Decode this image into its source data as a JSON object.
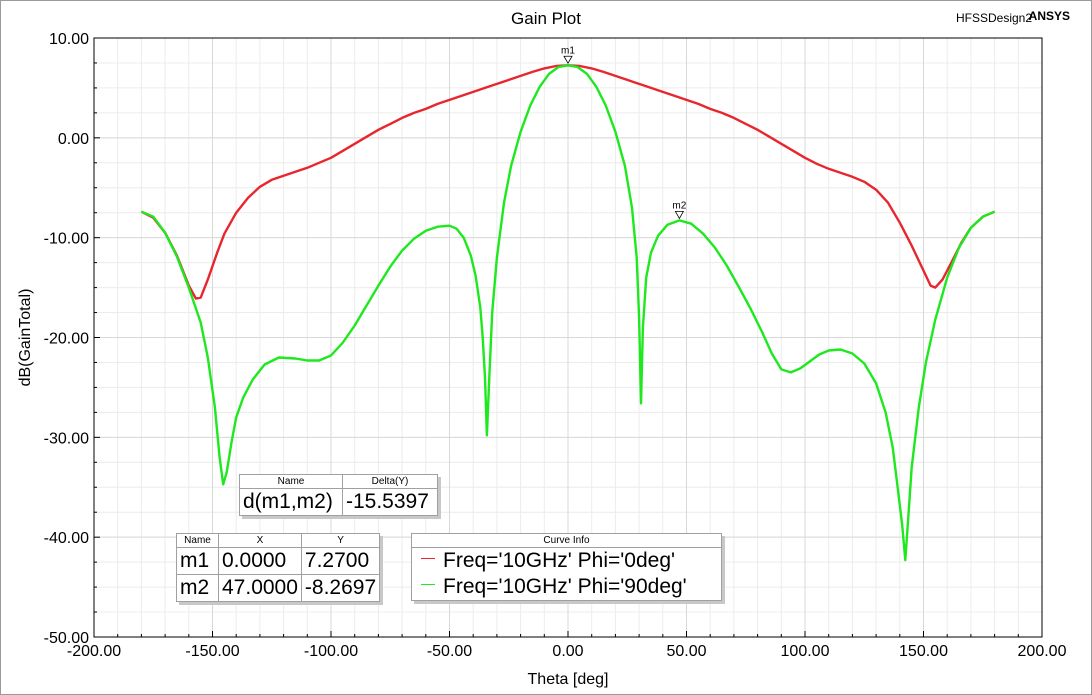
{
  "header": {
    "title": "Gain Plot",
    "design": "HFSSDesign2",
    "brand": "ANSYS"
  },
  "colors": {
    "series_red": "#e8262d",
    "series_green": "#1ee81e",
    "grid": "#d8d8d8",
    "axis": "#000000"
  },
  "chart_data": {
    "type": "line",
    "title": "Gain Plot",
    "xlabel": "Theta [deg]",
    "ylabel": "dB(GainTotal)",
    "xlim": [
      -200,
      200
    ],
    "ylim": [
      -50,
      10
    ],
    "x_ticks": [
      "-200.00",
      "-150.00",
      "-100.00",
      "-50.00",
      "0.00",
      "50.00",
      "100.00",
      "150.00",
      "200.00"
    ],
    "y_ticks": [
      "10.00",
      "0.00",
      "-10.00",
      "-20.00",
      "-30.00",
      "-40.00",
      "-50.00"
    ],
    "grid": true,
    "series": [
      {
        "name": "Freq='10GHz' Phi='0deg'",
        "color": "#e8262d",
        "points": [
          [
            -180,
            -7.4
          ],
          [
            -175,
            -8.0
          ],
          [
            -170,
            -9.5
          ],
          [
            -165,
            -11.8
          ],
          [
            -160,
            -14.8
          ],
          [
            -157,
            -16.1
          ],
          [
            -155,
            -16.0
          ],
          [
            -152,
            -14.2
          ],
          [
            -148,
            -11.5
          ],
          [
            -145,
            -9.6
          ],
          [
            -140,
            -7.5
          ],
          [
            -135,
            -6.0
          ],
          [
            -130,
            -4.9
          ],
          [
            -125,
            -4.2
          ],
          [
            -120,
            -3.8
          ],
          [
            -115,
            -3.4
          ],
          [
            -110,
            -3.0
          ],
          [
            -105,
            -2.5
          ],
          [
            -100,
            -2.0
          ],
          [
            -95,
            -1.3
          ],
          [
            -90,
            -0.6
          ],
          [
            -85,
            0.1
          ],
          [
            -80,
            0.8
          ],
          [
            -75,
            1.4
          ],
          [
            -70,
            2.0
          ],
          [
            -65,
            2.5
          ],
          [
            -60,
            2.9
          ],
          [
            -55,
            3.4
          ],
          [
            -50,
            3.8
          ],
          [
            -45,
            4.2
          ],
          [
            -40,
            4.6
          ],
          [
            -35,
            5.0
          ],
          [
            -30,
            5.4
          ],
          [
            -25,
            5.8
          ],
          [
            -20,
            6.2
          ],
          [
            -15,
            6.6
          ],
          [
            -10,
            6.95
          ],
          [
            -5,
            7.2
          ],
          [
            0,
            7.27
          ],
          [
            5,
            7.2
          ],
          [
            10,
            6.95
          ],
          [
            15,
            6.6
          ],
          [
            20,
            6.2
          ],
          [
            25,
            5.8
          ],
          [
            30,
            5.4
          ],
          [
            35,
            5.0
          ],
          [
            40,
            4.6
          ],
          [
            45,
            4.2
          ],
          [
            50,
            3.8
          ],
          [
            55,
            3.4
          ],
          [
            60,
            2.9
          ],
          [
            65,
            2.5
          ],
          [
            70,
            2.0
          ],
          [
            75,
            1.4
          ],
          [
            80,
            0.8
          ],
          [
            85,
            0.1
          ],
          [
            90,
            -0.6
          ],
          [
            95,
            -1.3
          ],
          [
            100,
            -2.0
          ],
          [
            105,
            -2.6
          ],
          [
            110,
            -3.1
          ],
          [
            115,
            -3.5
          ],
          [
            120,
            -3.9
          ],
          [
            125,
            -4.4
          ],
          [
            130,
            -5.2
          ],
          [
            135,
            -6.5
          ],
          [
            140,
            -8.5
          ],
          [
            145,
            -10.8
          ],
          [
            150,
            -13.3
          ],
          [
            153,
            -14.8
          ],
          [
            155,
            -15.0
          ],
          [
            158,
            -14.2
          ],
          [
            162,
            -12.4
          ],
          [
            166,
            -10.5
          ],
          [
            170,
            -9.0
          ],
          [
            175,
            -7.9
          ],
          [
            180,
            -7.4
          ]
        ]
      },
      {
        "name": "Freq='10GHz' Phi='90deg'",
        "color": "#1ee81e",
        "points": [
          [
            -180,
            -7.4
          ],
          [
            -175,
            -7.9
          ],
          [
            -170,
            -9.5
          ],
          [
            -165,
            -11.9
          ],
          [
            -160,
            -15.0
          ],
          [
            -155,
            -18.5
          ],
          [
            -152,
            -22.0
          ],
          [
            -149,
            -27.0
          ],
          [
            -147,
            -32.0
          ],
          [
            -145.5,
            -34.7
          ],
          [
            -144,
            -33.5
          ],
          [
            -142,
            -30.5
          ],
          [
            -140,
            -28.0
          ],
          [
            -137,
            -26.0
          ],
          [
            -133,
            -24.2
          ],
          [
            -128,
            -22.7
          ],
          [
            -122,
            -22.0
          ],
          [
            -115,
            -22.1
          ],
          [
            -110,
            -22.3
          ],
          [
            -105,
            -22.3
          ],
          [
            -100,
            -21.8
          ],
          [
            -95,
            -20.5
          ],
          [
            -90,
            -18.8
          ],
          [
            -85,
            -16.8
          ],
          [
            -80,
            -14.8
          ],
          [
            -75,
            -12.9
          ],
          [
            -70,
            -11.3
          ],
          [
            -65,
            -10.1
          ],
          [
            -60,
            -9.3
          ],
          [
            -55,
            -8.9
          ],
          [
            -50,
            -8.8
          ],
          [
            -47,
            -9.1
          ],
          [
            -44,
            -10.0
          ],
          [
            -41,
            -11.8
          ],
          [
            -39,
            -13.8
          ],
          [
            -37,
            -17.0
          ],
          [
            -36,
            -20.0
          ],
          [
            -35,
            -24.0
          ],
          [
            -34.2,
            -29.8
          ],
          [
            -33.2,
            -24.0
          ],
          [
            -32,
            -17.5
          ],
          [
            -30,
            -12.0
          ],
          [
            -27,
            -6.5
          ],
          [
            -24,
            -2.8
          ],
          [
            -20,
            0.6
          ],
          [
            -16,
            3.2
          ],
          [
            -12,
            5.1
          ],
          [
            -8,
            6.4
          ],
          [
            -4,
            7.1
          ],
          [
            0,
            7.27
          ],
          [
            4,
            7.1
          ],
          [
            8,
            6.4
          ],
          [
            12,
            5.1
          ],
          [
            16,
            3.2
          ],
          [
            20,
            0.6
          ],
          [
            24,
            -2.8
          ],
          [
            27,
            -7.0
          ],
          [
            29,
            -12.0
          ],
          [
            30,
            -18.0
          ],
          [
            30.8,
            -26.6
          ],
          [
            31.6,
            -19.0
          ],
          [
            33,
            -14.0
          ],
          [
            35,
            -11.5
          ],
          [
            38,
            -9.8
          ],
          [
            42,
            -8.7
          ],
          [
            47,
            -8.27
          ],
          [
            52,
            -8.6
          ],
          [
            57,
            -9.6
          ],
          [
            62,
            -11.0
          ],
          [
            67,
            -12.8
          ],
          [
            72,
            -14.9
          ],
          [
            77,
            -17.1
          ],
          [
            82,
            -19.5
          ],
          [
            86,
            -21.6
          ],
          [
            90,
            -23.2
          ],
          [
            94,
            -23.5
          ],
          [
            98,
            -23.1
          ],
          [
            102,
            -22.4
          ],
          [
            106,
            -21.7
          ],
          [
            110,
            -21.3
          ],
          [
            115,
            -21.2
          ],
          [
            120,
            -21.6
          ],
          [
            125,
            -22.6
          ],
          [
            130,
            -24.6
          ],
          [
            134,
            -27.5
          ],
          [
            137,
            -31.0
          ],
          [
            139,
            -34.8
          ],
          [
            141,
            -38.8
          ],
          [
            142.3,
            -42.3
          ],
          [
            143.6,
            -38.0
          ],
          [
            145,
            -33.0
          ],
          [
            148,
            -27.0
          ],
          [
            151,
            -22.5
          ],
          [
            155,
            -18.2
          ],
          [
            160,
            -14.0
          ],
          [
            165,
            -11.0
          ],
          [
            170,
            -9.0
          ],
          [
            175,
            -7.9
          ],
          [
            180,
            -7.4
          ]
        ]
      }
    ],
    "markers": [
      {
        "name": "m1",
        "x": 0.0,
        "y": 7.27
      },
      {
        "name": "m2",
        "x": 47.0,
        "y": -8.2697
      }
    ]
  },
  "delta_table": {
    "headers": [
      "Name",
      "Delta(Y)"
    ],
    "row": [
      "d(m1,m2)",
      "-15.5397"
    ]
  },
  "marker_table": {
    "headers": [
      "Name",
      "X",
      "Y"
    ],
    "rows": [
      [
        "m1",
        "0.0000",
        "7.2700"
      ],
      [
        "m2",
        "47.0000",
        "-8.2697"
      ]
    ]
  },
  "curve_info": {
    "header": "Curve Info",
    "entries": [
      {
        "label": "Freq='10GHz' Phi='0deg'",
        "color": "#e8262d"
      },
      {
        "label": "Freq='10GHz' Phi='90deg'",
        "color": "#1ee81e"
      }
    ]
  }
}
